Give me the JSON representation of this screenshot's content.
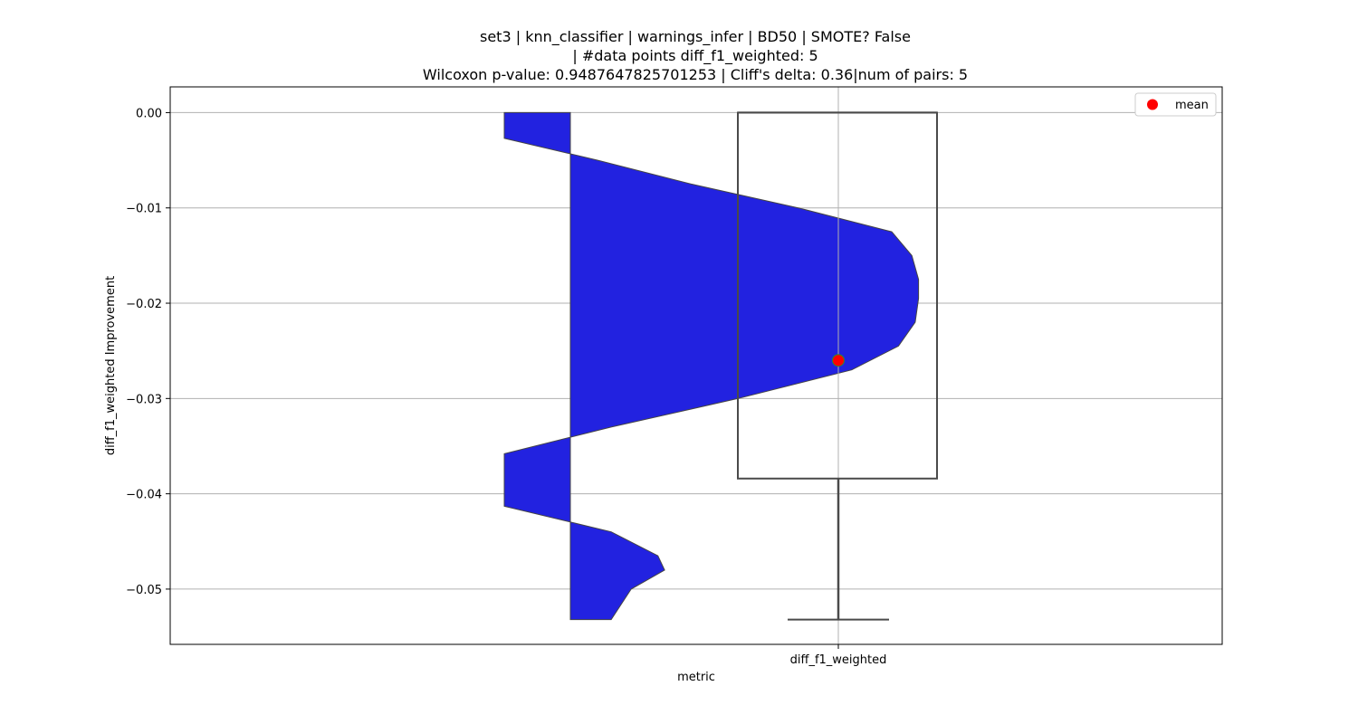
{
  "chart_data": {
    "type": "box",
    "title_lines": [
      "set3 | knn_classifier | warnings_infer | BD50 | SMOTE? False",
      "| #data points diff_f1_weighted: 5",
      "Wilcoxon p-value: 0.9487647825701253 | Cliff's delta: 0.36|num of pairs: 5"
    ],
    "xlabel": "metric",
    "ylabel": "diff_f1_weighted Improvement",
    "categories": [
      "diff_f1_weighted"
    ],
    "ylim": [
      -0.0558,
      0.0027
    ],
    "yticks": [
      0.0,
      -0.01,
      -0.02,
      -0.03,
      -0.04,
      -0.05
    ],
    "ytick_labels": [
      "0.00",
      "−0.01",
      "−0.02",
      "−0.03",
      "−0.04",
      "−0.05"
    ],
    "grid": true,
    "legend": {
      "position": "top-right",
      "entries": [
        {
          "label": "mean",
          "color": "#ff0000"
        }
      ]
    },
    "box": {
      "min": -0.0532,
      "q1": -0.0384,
      "median": 0.0,
      "q3": 0.0,
      "max": 0.0,
      "mean": -0.026
    },
    "violin": {
      "color": "#2222e0",
      "density_y": [
        0.0,
        -0.0027,
        -0.005,
        -0.0075,
        -0.01,
        -0.0125,
        -0.015,
        -0.0175,
        -0.0195,
        -0.022,
        -0.0245,
        -0.027,
        -0.03,
        -0.033,
        -0.0358,
        -0.038,
        -0.0413,
        -0.044,
        -0.0465,
        -0.048,
        -0.05,
        -0.0532
      ],
      "density_inner_x": [
        -0.5,
        -0.5,
        -0.36,
        -0.22,
        -0.06,
        0.08,
        0.11,
        0.12,
        0.12,
        0.115,
        0.09,
        0.02,
        -0.15,
        -0.34,
        -0.5,
        -0.5,
        -0.5,
        -0.34,
        -0.27,
        -0.26,
        -0.31,
        -0.34
      ]
    }
  }
}
